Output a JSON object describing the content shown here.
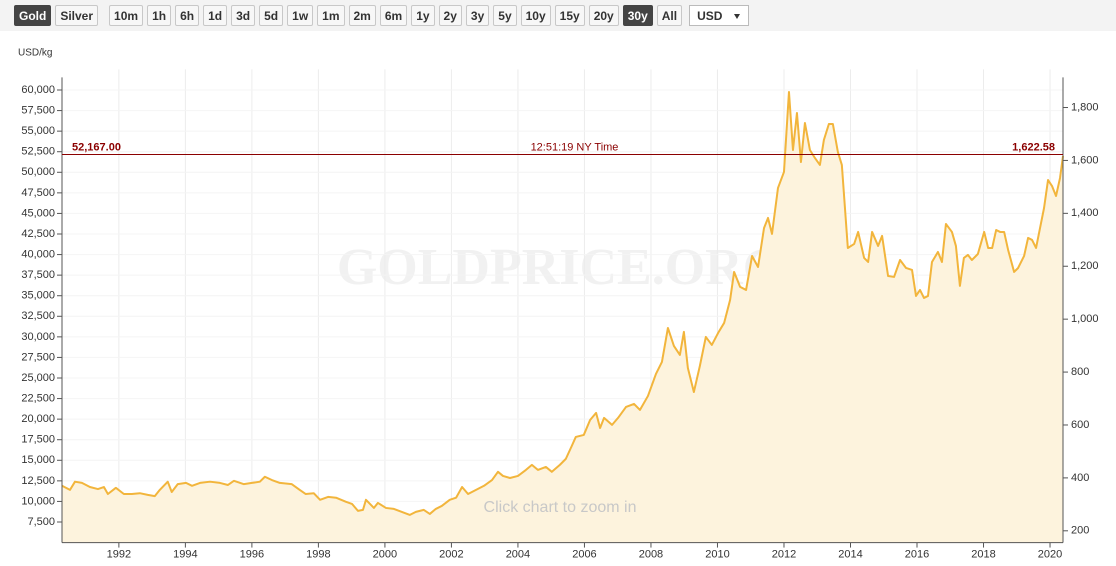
{
  "toolbar": {
    "metals": [
      "Gold",
      "Silver"
    ],
    "ranges": [
      "10m",
      "1h",
      "6h",
      "1d",
      "3d",
      "5d",
      "1w",
      "1m",
      "2m",
      "6m",
      "1y",
      "2y",
      "3y",
      "5y",
      "10y",
      "15y",
      "20y",
      "30y",
      "All"
    ],
    "currency": "USD"
  },
  "chart_data": {
    "type": "area",
    "y_label": "USD/kg",
    "watermark": "GOLDPRICE.ORG",
    "hint": "Click chart to zoom in",
    "line_color": "#f2b53c",
    "fill_color": "#fdf3dd",
    "grid": true,
    "xlim": [
      1990.29,
      2020.39
    ],
    "xticks": [
      1992,
      1994,
      1996,
      1998,
      2000,
      2002,
      2004,
      2006,
      2008,
      2010,
      2012,
      2014,
      2016,
      2018,
      2020
    ],
    "ylim": [
      5000,
      62500
    ],
    "yticks": [
      {
        "value": 7500,
        "label": "7,500"
      },
      {
        "value": 10000,
        "label": "10,000"
      },
      {
        "value": 12500,
        "label": "12,500"
      },
      {
        "value": 15000,
        "label": "15,000"
      },
      {
        "value": 17500,
        "label": "17,500"
      },
      {
        "value": 20000,
        "label": "20,000"
      },
      {
        "value": 22500,
        "label": "22,500"
      },
      {
        "value": 25000,
        "label": "25,000"
      },
      {
        "value": 27500,
        "label": "27,500"
      },
      {
        "value": 30000,
        "label": "30,000"
      },
      {
        "value": 32500,
        "label": "32,500"
      },
      {
        "value": 35000,
        "label": "35,000"
      },
      {
        "value": 37500,
        "label": "37,500"
      },
      {
        "value": 40000,
        "label": "40,000"
      },
      {
        "value": 42500,
        "label": "42,500"
      },
      {
        "value": 45000,
        "label": "45,000"
      },
      {
        "value": 47500,
        "label": "47,500"
      },
      {
        "value": 50000,
        "label": "50,000"
      },
      {
        "value": 52500,
        "label": "52,500"
      },
      {
        "value": 55000,
        "label": "55,000"
      },
      {
        "value": 57500,
        "label": "57,500"
      },
      {
        "value": 60000,
        "label": "60,000"
      }
    ],
    "y2lim": [
      155.52,
      1943.97
    ],
    "y2ticks": [
      200,
      400,
      600,
      800,
      {
        "value": 1000,
        "label": "1,000"
      },
      {
        "value": 1200,
        "label": "1,200"
      },
      {
        "value": 1400,
        "label": "1,400"
      },
      {
        "value": 1600,
        "label": "1,600"
      },
      {
        "value": 1800,
        "label": "1,800"
      }
    ],
    "price_line": {
      "color": "#8b0000",
      "value": 52167,
      "label": "52,167.00",
      "y2_value": 1622.58,
      "y2_label": "1,622.58",
      "time": "12:51:19 NY Time"
    },
    "x": [
      1990.29,
      1990.53,
      1990.68,
      1990.89,
      1991.13,
      1991.37,
      1991.55,
      1991.67,
      1991.91,
      1992.15,
      1992.39,
      1992.63,
      1992.87,
      1993.08,
      1993.23,
      1993.47,
      1993.59,
      1993.77,
      1994.02,
      1994.2,
      1994.44,
      1994.74,
      1995.04,
      1995.28,
      1995.46,
      1995.76,
      1996,
      1996.24,
      1996.39,
      1996.6,
      1996.84,
      1997.2,
      1997.44,
      1997.62,
      1997.86,
      1998.05,
      1998.29,
      1998.53,
      1998.83,
      1999.01,
      1999.19,
      1999.34,
      1999.43,
      1999.67,
      1999.79,
      2000.03,
      2000.27,
      2000.51,
      2000.75,
      2000.93,
      2001.17,
      2001.35,
      2001.53,
      2001.71,
      2001.95,
      2002.14,
      2002.32,
      2002.5,
      2002.74,
      2002.98,
      2003.22,
      2003.4,
      2003.55,
      2003.76,
      2004,
      2004.24,
      2004.42,
      2004.6,
      2004.84,
      2005.02,
      2005.26,
      2005.44,
      2005.62,
      2005.74,
      2005.98,
      2006.17,
      2006.35,
      2006.47,
      2006.59,
      2006.83,
      2007.01,
      2007.25,
      2007.49,
      2007.67,
      2007.91,
      2008.15,
      2008.33,
      2008.51,
      2008.69,
      2008.87,
      2008.99,
      2009.11,
      2009.29,
      2009.47,
      2009.65,
      2009.83,
      2010.02,
      2010.2,
      2010.38,
      2010.5,
      2010.68,
      2010.86,
      2011.04,
      2011.22,
      2011.4,
      2011.52,
      2011.64,
      2011.82,
      2012,
      2012.15,
      2012.27,
      2012.39,
      2012.51,
      2012.63,
      2012.78,
      2012.93,
      2013.08,
      2013.2,
      2013.35,
      2013.47,
      2013.62,
      2013.74,
      2013.92,
      2014.11,
      2014.23,
      2014.41,
      2014.53,
      2014.65,
      2014.83,
      2014.95,
      2015.13,
      2015.31,
      2015.49,
      2015.67,
      2015.85,
      2015.97,
      2016.09,
      2016.21,
      2016.33,
      2016.45,
      2016.63,
      2016.75,
      2016.87,
      2017.05,
      2017.17,
      2017.29,
      2017.41,
      2017.53,
      2017.65,
      2017.83,
      2018.02,
      2018.14,
      2018.26,
      2018.38,
      2018.5,
      2018.62,
      2018.74,
      2018.92,
      2019.04,
      2019.22,
      2019.34,
      2019.46,
      2019.58,
      2019.7,
      2019.82,
      2019.94,
      2020.06,
      2020.18,
      2020.3,
      2020.39
    ],
    "values": [
      11900,
      11400,
      12400,
      12250,
      11750,
      11500,
      11750,
      10900,
      11650,
      10900,
      10900,
      11000,
      10800,
      10650,
      11400,
      12400,
      11150,
      12100,
      12250,
      11900,
      12250,
      12400,
      12250,
      12000,
      12500,
      12100,
      12250,
      12400,
      13000,
      12600,
      12250,
      12100,
      11400,
      10900,
      11000,
      10200,
      10550,
      10450,
      9950,
      9700,
      8850,
      8970,
      10200,
      9210,
      9820,
      9210,
      9090,
      8730,
      8360,
      8730,
      8970,
      8480,
      9090,
      9450,
      10200,
      10450,
      11750,
      10900,
      11400,
      11900,
      12600,
      13600,
      13100,
      12850,
      13100,
      13830,
      14440,
      13830,
      14190,
      13600,
      14440,
      15170,
      16750,
      17840,
      18080,
      19900,
      20760,
      18930,
      20150,
      19300,
      20150,
      21480,
      21850,
      21120,
      22820,
      25490,
      26950,
      31080,
      28900,
      27800,
      30600,
      26220,
      23300,
      26460,
      29990,
      29020,
      30480,
      31690,
      34490,
      37890,
      36070,
      35700,
      39830,
      38490,
      43230,
      44450,
      42510,
      48100,
      50040,
      59760,
      52710,
      57200,
      51250,
      55990,
      52710,
      51740,
      50890,
      53930,
      55870,
      55870,
      52470,
      50890,
      40800,
      41290,
      42750,
      39590,
      39100,
      42750,
      41050,
      42270,
      37400,
      37280,
      39340,
      38370,
      38130,
      34970,
      35700,
      34730,
      34970,
      39100,
      40320,
      39100,
      43720,
      42750,
      41050,
      36190,
      39590,
      39960,
      39340,
      40070,
      42750,
      40800,
      40800,
      42990,
      42750,
      42750,
      40560,
      37890,
      38370,
      39830,
      42020,
      41780,
      40800,
      43230,
      45660,
      49060,
      48330,
      47120,
      49300,
      51980
    ]
  }
}
